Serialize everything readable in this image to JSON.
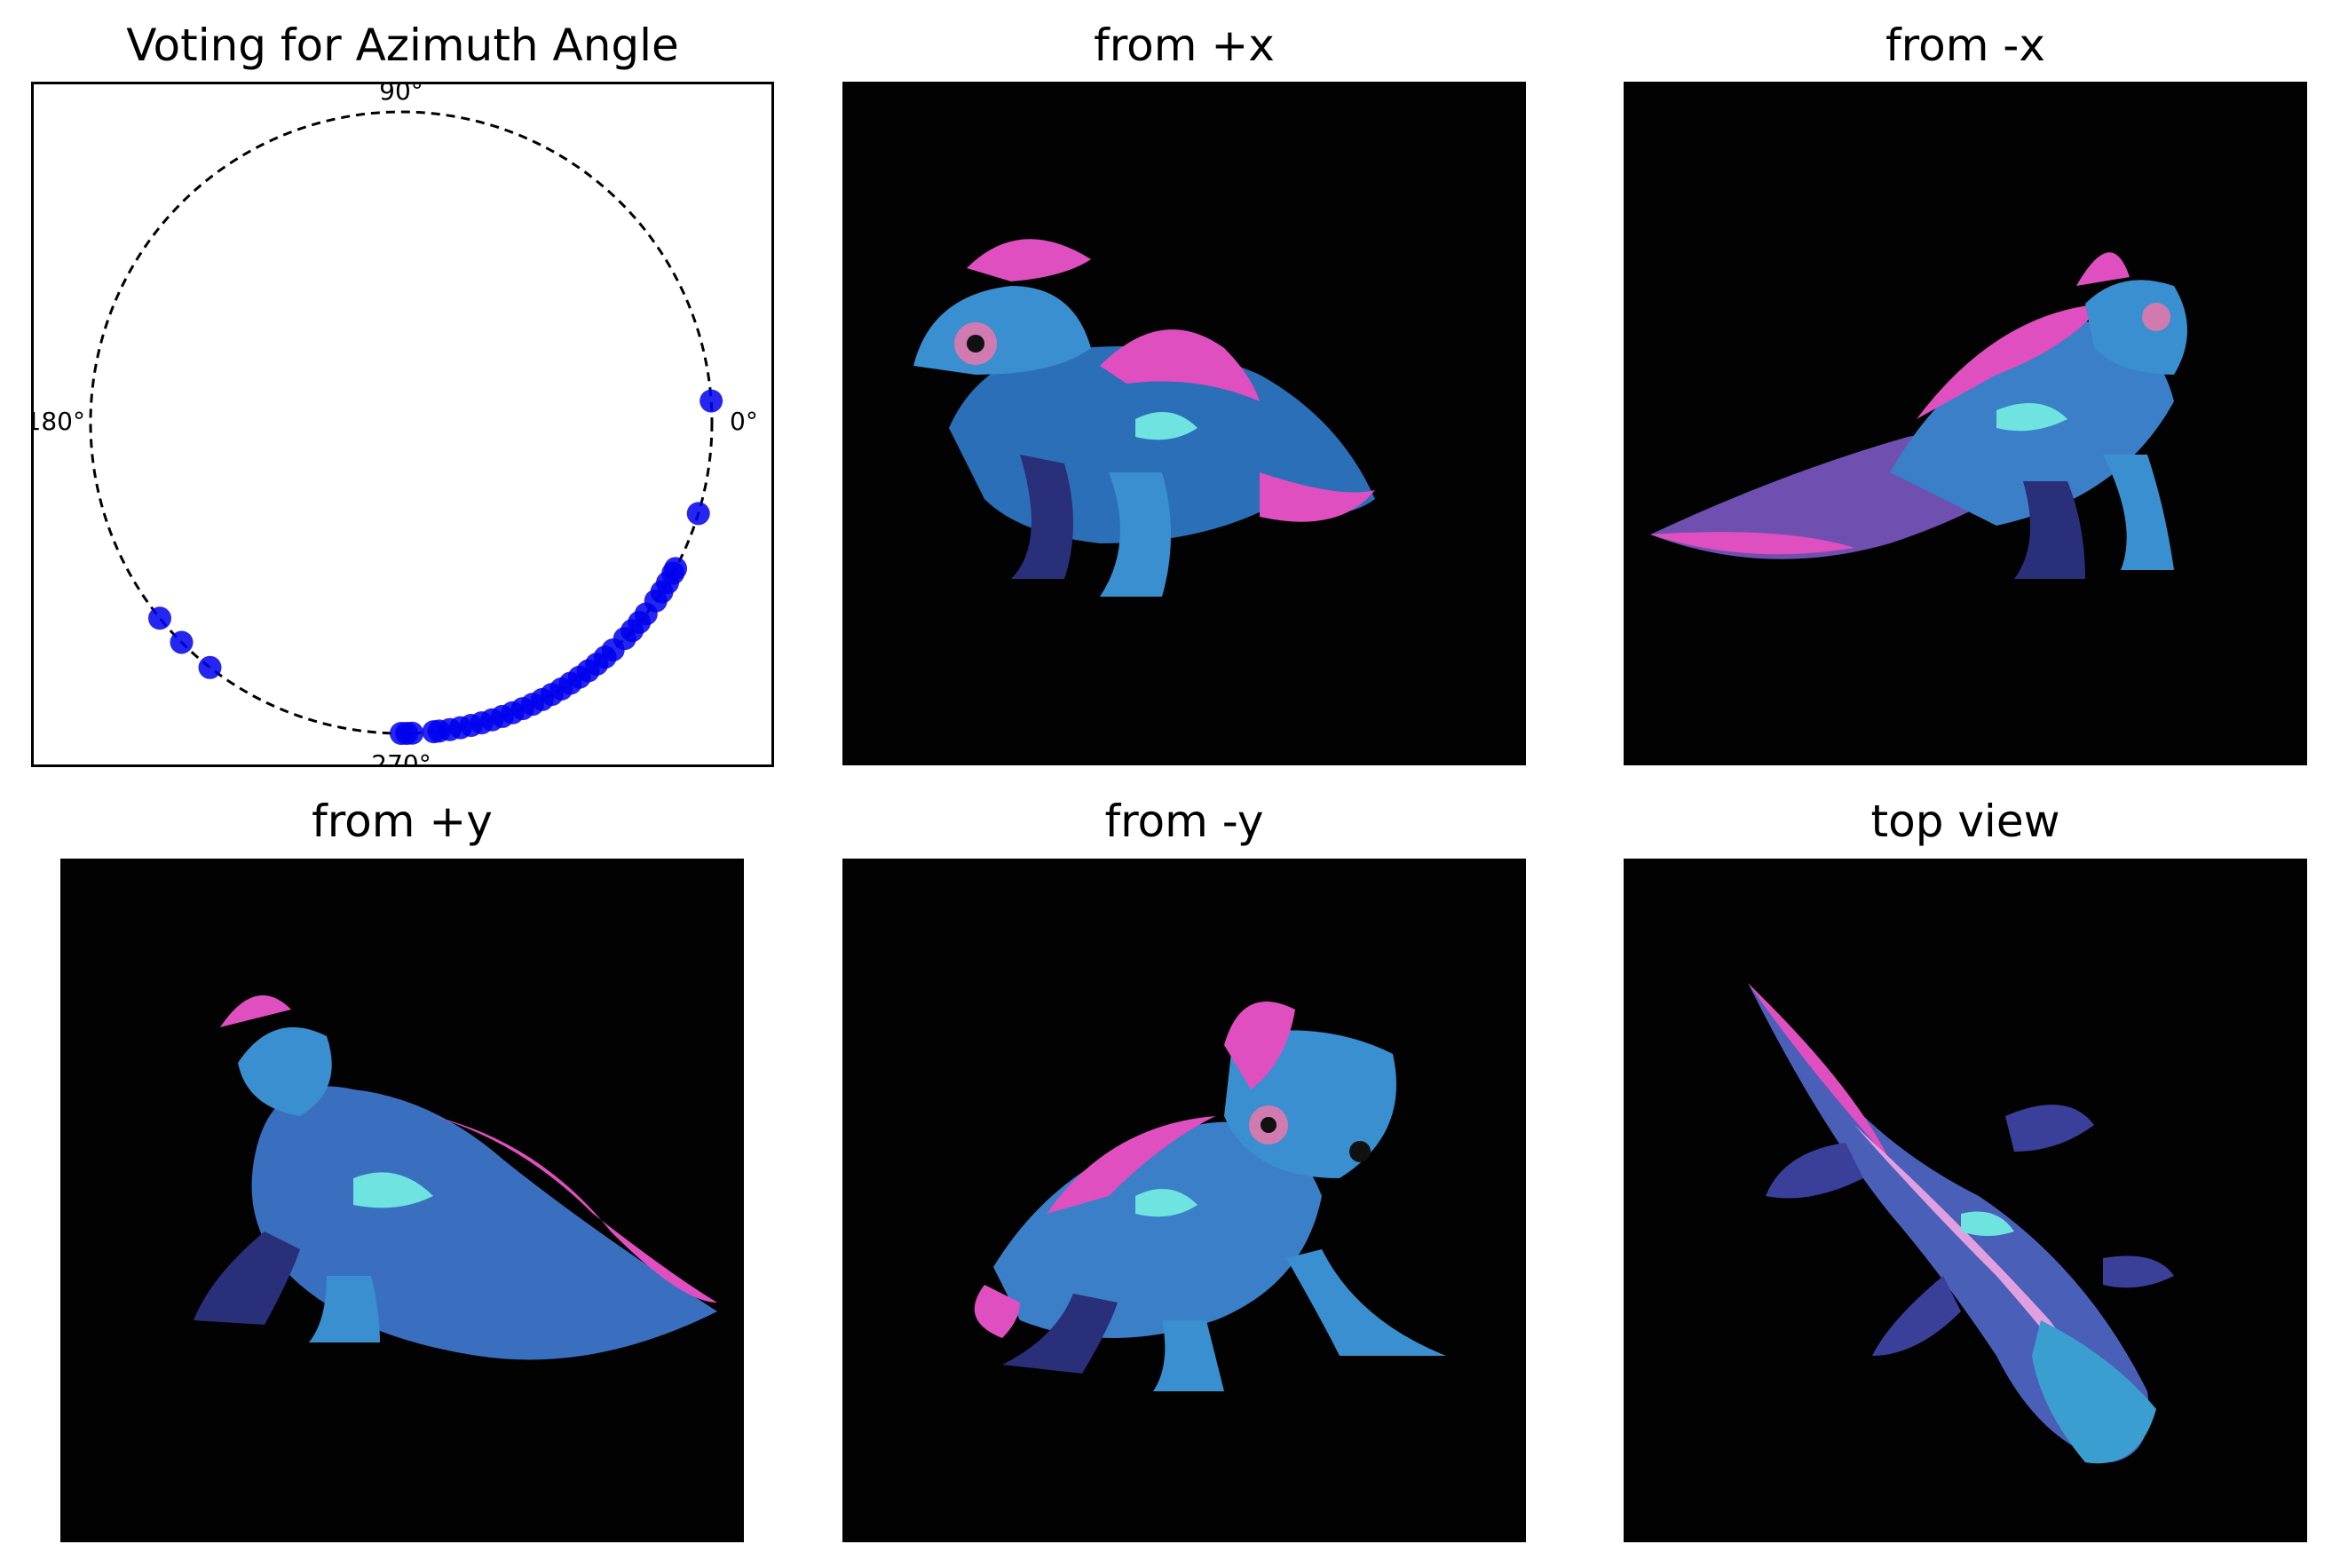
{
  "panels": {
    "chart_title": "Voting for Azimuth Angle",
    "view_plus_x": "from +x",
    "view_minus_x": "from -x",
    "view_plus_y": "from +y",
    "view_minus_y": "from -y",
    "view_top": "top view"
  },
  "colors": {
    "point": "#0000ee",
    "circle": "#000000",
    "image_background": "#020202",
    "creature_body": "#3a8fd0",
    "creature_dark": "#2a2f7a",
    "creature_crest": "#e04fc0",
    "creature_spots": "#6fe3e0"
  },
  "chart_data": {
    "type": "scatter",
    "coordinate_system": "polar",
    "title": "Voting for Azimuth Angle",
    "angle_ticks": [
      {
        "angle": 0,
        "label": "0°"
      },
      {
        "angle": 90,
        "label": "90°"
      },
      {
        "angle": 180,
        "label": "180°"
      },
      {
        "angle": 270,
        "label": "270°"
      }
    ],
    "radius": 1,
    "grid": false,
    "angles_deg": [
      4,
      343,
      332,
      331,
      329,
      327,
      325,
      322,
      320,
      318,
      316,
      313,
      311,
      309,
      307,
      305,
      303,
      301,
      299,
      297,
      295,
      293,
      291,
      289,
      287,
      285,
      283,
      281,
      279,
      277,
      276,
      270,
      271,
      272,
      219,
      225,
      232
    ]
  }
}
